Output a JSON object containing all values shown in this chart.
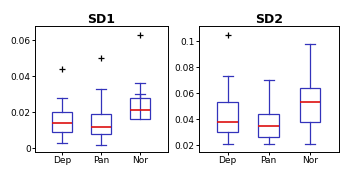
{
  "sd1": {
    "title": "SD1",
    "categories": [
      "Dep",
      "Pan",
      "Nor"
    ],
    "ylim": [
      -0.002,
      0.068
    ],
    "yticks": [
      0,
      0.02,
      0.04,
      0.06
    ],
    "yticklabels": [
      "0",
      "0.02",
      "0.04",
      "0.06"
    ],
    "boxes": [
      {
        "q1": 0.009,
        "median": 0.014,
        "q3": 0.02,
        "whislo": 0.003,
        "whishi": 0.028,
        "fliers": [
          0.044
        ]
      },
      {
        "q1": 0.008,
        "median": 0.012,
        "q3": 0.019,
        "whislo": 0.002,
        "whishi": 0.033,
        "fliers": [
          0.05
        ]
      },
      {
        "q1": 0.016,
        "median": 0.021,
        "q3": 0.028,
        "whislo": 0.03,
        "whishi": 0.036,
        "fliers": [
          0.063
        ]
      }
    ]
  },
  "sd2": {
    "title": "SD2",
    "categories": [
      "Dep",
      "Pan",
      "Nor"
    ],
    "ylim": [
      0.015,
      0.112
    ],
    "yticks": [
      0.02,
      0.04,
      0.06,
      0.08,
      0.1
    ],
    "yticklabels": [
      "0.02",
      "0.04",
      "0.06",
      "0.08",
      "0.1"
    ],
    "boxes": [
      {
        "q1": 0.03,
        "median": 0.038,
        "q3": 0.053,
        "whislo": 0.021,
        "whishi": 0.073,
        "fliers": [
          0.105
        ]
      },
      {
        "q1": 0.026,
        "median": 0.035,
        "q3": 0.044,
        "whislo": 0.021,
        "whishi": 0.07,
        "fliers": []
      },
      {
        "q1": 0.038,
        "median": 0.053,
        "q3": 0.064,
        "whislo": 0.021,
        "whishi": 0.098,
        "fliers": []
      }
    ]
  },
  "box_color": "#3333bb",
  "median_color": "#dd1111",
  "flier_color": "#dd1111",
  "title_fontsize": 9,
  "tick_fontsize": 6.5,
  "figsize": [
    3.49,
    1.85
  ],
  "dpi": 100
}
